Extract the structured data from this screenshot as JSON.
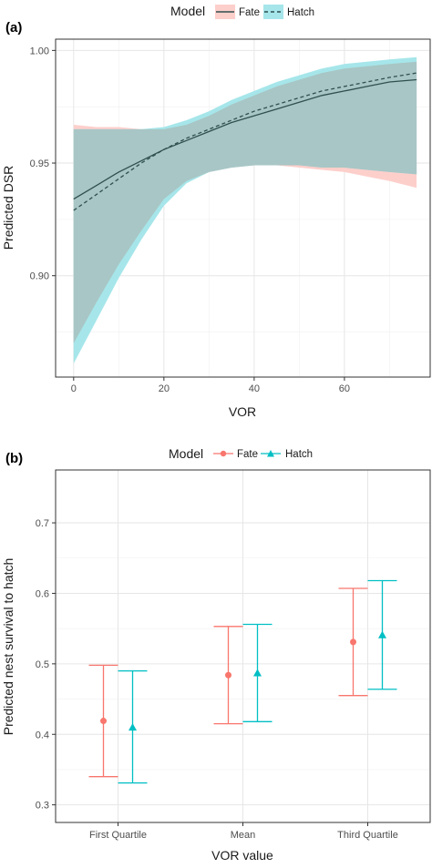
{
  "chart_data": [
    {
      "panel": "(a)",
      "type": "line",
      "xlabel": "VOR",
      "ylabel": "Predicted DSR",
      "xlim": [
        -4,
        79
      ],
      "ylim": [
        0.855,
        1.005
      ],
      "xticks": [
        0,
        20,
        40,
        60
      ],
      "yticks": [
        0.9,
        0.95,
        1.0
      ],
      "ytick_labels": [
        "0.90",
        "0.95",
        "1.00"
      ],
      "grid": true,
      "legend": {
        "title": "Model",
        "position": "top",
        "entries": [
          "Fate",
          "Hatch"
        ]
      },
      "colors": {
        "Fate": "#f8766d",
        "Hatch": "#00bfc4",
        "line": "#2f4f4f",
        "Fate_band": "#fdcfcb",
        "Hatch_band": "#a6e6ea",
        "overlap": "#a8c6c5"
      },
      "series": [
        {
          "name": "Fate",
          "line_style": "solid",
          "x": [
            0,
            5,
            10,
            15,
            20,
            25,
            30,
            35,
            40,
            45,
            50,
            55,
            60,
            65,
            70,
            76
          ],
          "y": [
            0.934,
            0.94,
            0.946,
            0.951,
            0.956,
            0.96,
            0.964,
            0.968,
            0.971,
            0.974,
            0.977,
            0.98,
            0.982,
            0.984,
            0.986,
            0.987
          ],
          "lower": [
            0.87,
            0.888,
            0.905,
            0.92,
            0.934,
            0.942,
            0.946,
            0.948,
            0.949,
            0.949,
            0.948,
            0.947,
            0.946,
            0.944,
            0.942,
            0.939
          ],
          "upper": [
            0.967,
            0.966,
            0.966,
            0.965,
            0.965,
            0.967,
            0.971,
            0.976,
            0.98,
            0.984,
            0.987,
            0.99,
            0.992,
            0.993,
            0.994,
            0.995
          ]
        },
        {
          "name": "Hatch",
          "line_style": "dashed",
          "x": [
            0,
            5,
            10,
            15,
            20,
            25,
            30,
            35,
            40,
            45,
            50,
            55,
            60,
            65,
            70,
            76
          ],
          "y": [
            0.929,
            0.936,
            0.943,
            0.95,
            0.956,
            0.961,
            0.965,
            0.969,
            0.973,
            0.976,
            0.979,
            0.982,
            0.984,
            0.986,
            0.988,
            0.99
          ],
          "lower": [
            0.861,
            0.88,
            0.899,
            0.916,
            0.931,
            0.941,
            0.946,
            0.948,
            0.949,
            0.949,
            0.949,
            0.948,
            0.948,
            0.947,
            0.946,
            0.945
          ],
          "upper": [
            0.965,
            0.965,
            0.965,
            0.965,
            0.966,
            0.969,
            0.973,
            0.978,
            0.982,
            0.986,
            0.989,
            0.992,
            0.994,
            0.995,
            0.996,
            0.997
          ]
        }
      ]
    },
    {
      "panel": "(b)",
      "type": "scatter",
      "xlabel": "VOR value",
      "ylabel": "Predicted nest survival to hatch",
      "categories": [
        "First Quartile",
        "Mean",
        "Third Quartile"
      ],
      "ylim": [
        0.275,
        0.775
      ],
      "yticks": [
        0.3,
        0.4,
        0.5,
        0.6,
        0.7
      ],
      "ytick_labels": [
        "0.3",
        "0.4",
        "0.5",
        "0.6",
        "0.7"
      ],
      "grid": true,
      "legend": {
        "title": "Model",
        "position": "top",
        "entries": [
          "Fate",
          "Hatch"
        ]
      },
      "colors": {
        "Fate": "#f8766d",
        "Hatch": "#00bfc4"
      },
      "series": [
        {
          "name": "Fate",
          "marker": "circle",
          "values": [
            0.419,
            0.484,
            0.531
          ],
          "lower": [
            0.34,
            0.415,
            0.455
          ],
          "upper": [
            0.498,
            0.553,
            0.607
          ]
        },
        {
          "name": "Hatch",
          "marker": "triangle",
          "values": [
            0.41,
            0.487,
            0.541
          ],
          "lower": [
            0.331,
            0.418,
            0.464
          ],
          "upper": [
            0.49,
            0.556,
            0.618
          ]
        }
      ]
    }
  ]
}
